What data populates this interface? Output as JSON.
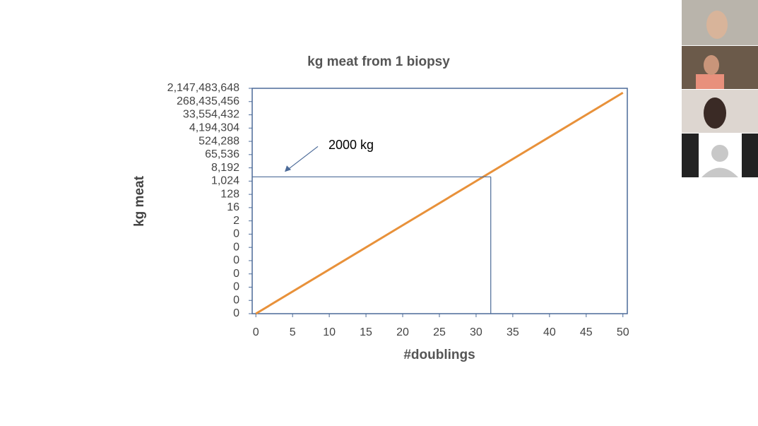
{
  "chart_data": {
    "type": "line",
    "title": "kg meat from 1 biopsy",
    "x_label": "#doublings",
    "y_label": "kg meat",
    "log_y": true,
    "x": [
      0,
      10,
      20,
      30,
      40,
      50
    ],
    "series": [
      {
        "name": "kg meat",
        "color": "#e8913a",
        "values": [
          9.5367e-07,
          0.000977,
          1,
          1024,
          1048576,
          1073741824
        ]
      }
    ],
    "xlim": [
      -0.5,
      50.6
    ],
    "xticks": [
      0,
      5,
      10,
      15,
      20,
      25,
      30,
      35,
      40,
      45,
      50
    ],
    "ylim": [
      9.5367e-07,
      2147483648
    ],
    "yticks": [
      {
        "value": 9.5367e-07,
        "label": "0"
      },
      {
        "value": 7.6294e-06,
        "label": "0"
      },
      {
        "value": 6.1035e-05,
        "label": "0"
      },
      {
        "value": 0.00048828,
        "label": "0"
      },
      {
        "value": 0.0039063,
        "label": "0"
      },
      {
        "value": 0.03125,
        "label": "0"
      },
      {
        "value": 0.25,
        "label": "0"
      },
      2,
      16,
      128,
      {
        "value": 1024,
        "label": "1,024"
      },
      {
        "value": 8192,
        "label": "8,192"
      },
      {
        "value": 65536,
        "label": "65,536"
      },
      {
        "value": 524288,
        "label": "524,288"
      },
      {
        "value": 4194304,
        "label": "4,194,304"
      },
      {
        "value": 33554432,
        "label": "33,554,432"
      },
      {
        "value": 268435456,
        "label": "268,435,456"
      },
      {
        "value": 2147483648,
        "label": "2,147,483,648"
      }
    ],
    "reference": {
      "x": 32,
      "y": 2000,
      "label": "2000 kg"
    }
  }
}
